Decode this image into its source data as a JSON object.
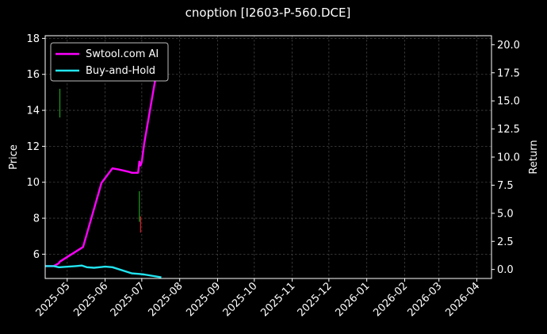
{
  "chart_data": {
    "type": "line",
    "title": "cnoption [I2603-P-560.DCE]",
    "xlabel": "",
    "ylabel_left": "Price",
    "ylabel_right": "Return",
    "x_ticks": [
      "2025-05",
      "2025-06",
      "2025-07",
      "2025-08",
      "2025-09",
      "2025-10",
      "2025-11",
      "2025-12",
      "2026-01",
      "2026-02",
      "2026-03",
      "2026-04"
    ],
    "x_range": [
      "2025-04-13",
      "2026-04-13"
    ],
    "y_left_range": [
      4.65,
      18.15
    ],
    "y_left_ticks": [
      "6",
      "8",
      "10",
      "12",
      "14",
      "16",
      "18"
    ],
    "y_right_range": [
      -0.8,
      20.8
    ],
    "y_right_ticks": [
      "0.0",
      "2.5",
      "5.0",
      "7.5",
      "10.0",
      "12.5",
      "15.0",
      "17.5",
      "20.0"
    ],
    "grid": true,
    "legend_position": "top-left",
    "colors": {
      "background": "#000000",
      "grid": "#444444",
      "text": "#ffffff",
      "up_candle": "#1f9e1f",
      "down_candle": "#e0202a"
    },
    "series": [
      {
        "name": "Swtool.com AI",
        "axis": "right",
        "color": "#ff00ff",
        "points": [
          [
            "2025-04-13",
            0.3
          ],
          [
            "2025-04-20",
            0.3
          ],
          [
            "2025-04-24",
            0.55
          ],
          [
            "2025-04-25",
            0.7
          ],
          [
            "2025-05-14",
            2.0
          ],
          [
            "2025-05-29",
            7.7
          ],
          [
            "2025-06-07",
            9.0
          ],
          [
            "2025-06-12",
            8.9
          ],
          [
            "2025-06-18",
            8.75
          ],
          [
            "2025-06-20",
            8.7
          ],
          [
            "2025-06-23",
            8.6
          ],
          [
            "2025-06-25",
            8.6
          ],
          [
            "2025-06-28",
            8.6
          ],
          [
            "2025-06-29",
            9.6
          ],
          [
            "2025-06-30",
            9.25
          ],
          [
            "2025-07-01",
            9.6
          ],
          [
            "2025-07-03",
            11.2
          ],
          [
            "2025-07-17",
            20.0
          ]
        ]
      },
      {
        "name": "Buy-and-Hold",
        "axis": "right",
        "color": "#22e5f0",
        "points": [
          [
            "2025-04-13",
            0.3
          ],
          [
            "2025-04-20",
            0.3
          ],
          [
            "2025-04-24",
            0.2
          ],
          [
            "2025-04-25",
            0.2
          ],
          [
            "2025-05-08",
            0.3
          ],
          [
            "2025-05-13",
            0.35
          ],
          [
            "2025-05-17",
            0.2
          ],
          [
            "2025-05-23",
            0.15
          ],
          [
            "2025-06-01",
            0.25
          ],
          [
            "2025-06-07",
            0.2
          ],
          [
            "2025-06-23",
            -0.35
          ],
          [
            "2025-06-29",
            -0.4
          ],
          [
            "2025-07-03",
            -0.45
          ],
          [
            "2025-07-17",
            -0.7
          ]
        ]
      }
    ],
    "candles": [
      {
        "date": "2025-04-25",
        "low": 13.6,
        "high": 15.2,
        "direction": "up"
      },
      {
        "date": "2025-06-29",
        "low": 7.8,
        "high": 9.5,
        "direction": "up"
      },
      {
        "date": "2025-06-30",
        "low": 7.2,
        "high": 8.1,
        "direction": "down"
      }
    ]
  }
}
